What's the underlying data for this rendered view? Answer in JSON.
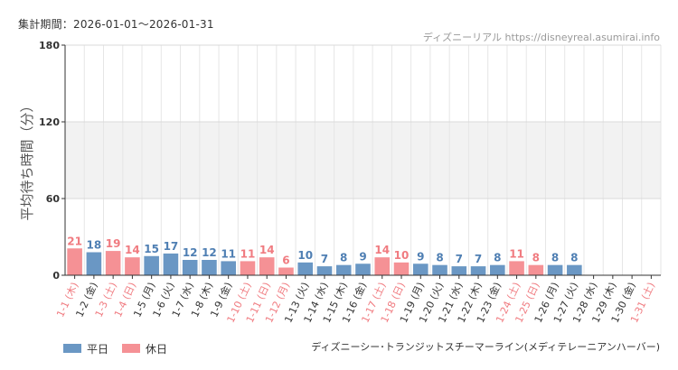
{
  "header": {
    "period_label": "集計期間：2026-01-01〜2026-01-31",
    "credit": "ディズニーリアル https://disneyreal.asumirai.info"
  },
  "footer": {
    "attraction": "ディズニーシー･トランジットスチーマーライン(メディテレーニアンハーバー)"
  },
  "legend": [
    {
      "label": "平日",
      "color": "#6a97c4"
    },
    {
      "label": "休日",
      "color": "#f59195"
    }
  ],
  "chart_data": {
    "type": "bar",
    "ylabel": "平均待ち時間（分）",
    "ylim": [
      0,
      180
    ],
    "yticks": [
      0,
      60,
      120,
      180
    ],
    "categories": [
      "1-1 (木)",
      "1-2 (金)",
      "1-3 (土)",
      "1-4 (日)",
      "1-5 (月)",
      "1-6 (火)",
      "1-7 (水)",
      "1-8 (木)",
      "1-9 (金)",
      "1-10 (土)",
      "1-11 (日)",
      "1-12 (月)",
      "1-13 (火)",
      "1-14 (水)",
      "1-15 (木)",
      "1-16 (金)",
      "1-17 (土)",
      "1-18 (日)",
      "1-19 (月)",
      "1-20 (火)",
      "1-21 (水)",
      "1-22 (木)",
      "1-23 (金)",
      "1-24 (土)",
      "1-25 (日)",
      "1-26 (月)",
      "1-27 (火)",
      "1-28 (水)",
      "1-29 (木)",
      "1-30 (金)",
      "1-31 (土)"
    ],
    "values": [
      21,
      18,
      19,
      14,
      15,
      17,
      12,
      12,
      11,
      11,
      14,
      6,
      10,
      7,
      8,
      9,
      14,
      10,
      9,
      8,
      7,
      7,
      8,
      11,
      8,
      8,
      8,
      null,
      null,
      null,
      null
    ],
    "holiday": [
      true,
      false,
      true,
      true,
      false,
      false,
      false,
      false,
      false,
      true,
      true,
      true,
      false,
      false,
      false,
      false,
      true,
      true,
      false,
      false,
      false,
      false,
      false,
      true,
      true,
      false,
      false,
      false,
      false,
      false,
      true
    ],
    "colors": {
      "weekday": "#6a97c4",
      "holiday": "#f59195",
      "weekday_text": "#4f7fb3",
      "holiday_text": "#f07b80"
    },
    "shaded_band": [
      60,
      120
    ],
    "grid": true
  }
}
